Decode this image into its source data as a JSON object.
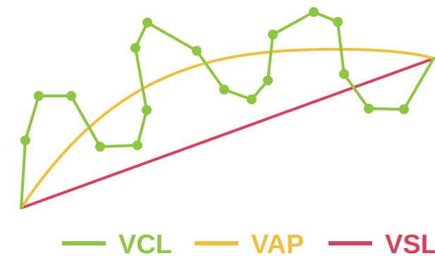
{
  "colors": {
    "vcl": "#8dc63f",
    "vap": "#f0bf3c",
    "vsl": "#d9405a"
  },
  "legend": [
    {
      "key": "vcl",
      "label": "VCL"
    },
    {
      "key": "vap",
      "label": "VAP"
    },
    {
      "key": "vsl",
      "label": "VSL"
    }
  ]
}
